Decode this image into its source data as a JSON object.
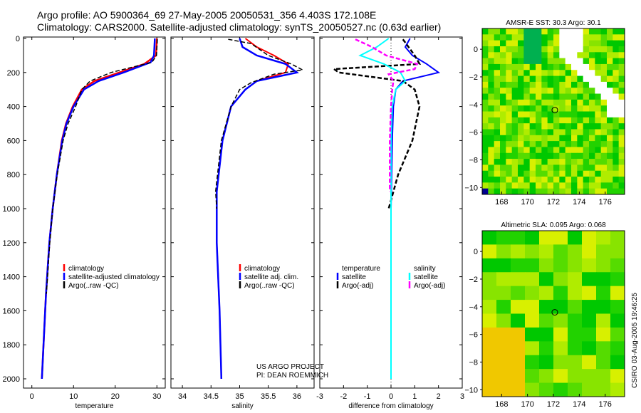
{
  "title_line1": "Argo profile: AO 5900364_69 27-May-2005 20050531_356 4.403S 172.108E",
  "title_line2": "Climatology: CARS2000. Satellite-adjusted climatology: synTS_20050527.nc (0.63d earlier)",
  "credit1": "US ARGO PROJECT",
  "credit2": "PI: DEAN ROEMMICH",
  "side_stamp": "CSIRO 03-Aug-2005 19:46:25",
  "colors": {
    "climatology": "#ff0000",
    "satellite": "#0000ff",
    "argo": "#000000",
    "sal_sat": "#00ffff",
    "sal_argo": "#ff00ff"
  },
  "chart_data": [
    {
      "type": "line",
      "name": "temperature",
      "xlabel": "temperature",
      "xlim": [
        -2,
        32
      ],
      "ylim": [
        0,
        2050
      ],
      "xticks": [
        0,
        10,
        20,
        30
      ],
      "yticks": [
        0,
        200,
        400,
        600,
        800,
        1000,
        1200,
        1400,
        1600,
        1800,
        2000
      ],
      "legend": [
        "climatology",
        "satellite-adjusted climatology",
        "Argo(..raw -QC)"
      ],
      "series": [
        {
          "name": "climatology",
          "depth": [
            0,
            100,
            150,
            200,
            250,
            300,
            400,
            500,
            600,
            800,
            1000,
            1200,
            1500,
            1800,
            2000
          ],
          "values": [
            30,
            29.8,
            27,
            21,
            15,
            12,
            9.8,
            8.2,
            7.2,
            6,
            5,
            4.2,
            3.4,
            2.8,
            2.4
          ]
        },
        {
          "name": "satellite-adjusted climatology",
          "depth": [
            0,
            100,
            140,
            200,
            250,
            300,
            400,
            500,
            600,
            800,
            1000,
            1200,
            1500,
            1800,
            2000
          ],
          "values": [
            29.5,
            29.3,
            28.5,
            22,
            16,
            12.5,
            10,
            8.3,
            7.3,
            6,
            5,
            4.2,
            3.4,
            2.8,
            2.4
          ]
        },
        {
          "name": "Argo(..raw -QC)",
          "depth": [
            5,
            100,
            140,
            200,
            250,
            300,
            400,
            500,
            600,
            800,
            1000,
            1200,
            1500
          ],
          "values": [
            30.1,
            29.9,
            28.8,
            19,
            14,
            12,
            10.5,
            8.7,
            7.5,
            6.1,
            5,
            4.3,
            3.5
          ]
        }
      ]
    },
    {
      "type": "line",
      "name": "salinity",
      "xlabel": "salinity",
      "xlim": [
        33.8,
        36.3
      ],
      "ylim": [
        0,
        2050
      ],
      "xticks": [
        34,
        34.5,
        35,
        35.5,
        36
      ],
      "xticklabels": [
        "34",
        "34.5",
        "35",
        "35.5",
        "36"
      ],
      "legend": [
        "climatology",
        "satellite adj. clim.",
        "Argo(..raw -QC)"
      ],
      "series": [
        {
          "name": "climatology",
          "depth": [
            0,
            50,
            100,
            150,
            200,
            250,
            300,
            400,
            600,
            900,
            1200,
            1600,
            2000
          ],
          "values": [
            35.1,
            35.3,
            35.6,
            35.85,
            35.8,
            35.3,
            35.1,
            34.85,
            34.7,
            34.6,
            34.6,
            34.65,
            34.68
          ]
        },
        {
          "name": "satellite adj. clim.",
          "depth": [
            0,
            50,
            100,
            150,
            200,
            250,
            300,
            400,
            600,
            900,
            1200,
            1600,
            2000
          ],
          "values": [
            35.0,
            35.05,
            35.3,
            35.8,
            36.0,
            35.3,
            35.1,
            34.85,
            34.7,
            34.6,
            34.6,
            34.65,
            34.68
          ]
        },
        {
          "name": "Argo(..raw -QC)",
          "depth": [
            5,
            30,
            100,
            150,
            185,
            210,
            260,
            300,
            400,
            600,
            900,
            1000
          ],
          "values": [
            34.8,
            35.2,
            35.5,
            35.9,
            36.1,
            35.6,
            35.2,
            35.0,
            34.85,
            34.68,
            34.58,
            34.6
          ]
        }
      ]
    },
    {
      "type": "line",
      "name": "difference",
      "xlabel": "difference from climatology",
      "xlim": [
        -3,
        3
      ],
      "ylim": [
        0,
        2050
      ],
      "xticks": [
        -3,
        -2,
        -1,
        0,
        1,
        2,
        3
      ],
      "legend_temp": [
        "temperature",
        "satellite",
        "Argo(-adj)"
      ],
      "legend_sal": [
        "salinity",
        "satellite",
        "Argo(-adj)"
      ],
      "series": [
        {
          "name": "temperature satellite",
          "depth": [
            0,
            50,
            100,
            150,
            200,
            250,
            300,
            400,
            600,
            1000,
            1500,
            2000
          ],
          "values": [
            0.8,
            0.6,
            0.9,
            1.5,
            2.0,
            0.5,
            0.2,
            0.1,
            0.05,
            0,
            0,
            0
          ]
        },
        {
          "name": "temperature Argo(-adj)",
          "depth": [
            5,
            100,
            150,
            180,
            200,
            250,
            300,
            400,
            600,
            800,
            1000
          ],
          "values": [
            0.5,
            1.0,
            1.2,
            -2.4,
            -2.2,
            0.5,
            1.0,
            1.2,
            0.9,
            0.3,
            -0.1
          ]
        },
        {
          "name": "salinity satellite",
          "depth": [
            0,
            50,
            100,
            150,
            200,
            250,
            300,
            400,
            600,
            1000,
            1500,
            2000
          ],
          "values": [
            -0.1,
            -0.6,
            -1.3,
            -0.3,
            0.4,
            0.6,
            0.2,
            0.05,
            0,
            0,
            0,
            0
          ]
        },
        {
          "name": "salinity Argo(-adj)",
          "depth": [
            5,
            50,
            100,
            150,
            180,
            210,
            250,
            300,
            400,
            600,
            900
          ],
          "values": [
            -1.5,
            -0.8,
            -0.2,
            1.1,
            1.0,
            -0.1,
            0.1,
            0.05,
            0,
            -0.05,
            -0.05
          ]
        }
      ]
    },
    {
      "type": "heatmap",
      "name": "sst-map",
      "title": "AMSR-E SST: 30.3 Argo: 30.1",
      "xticks": [
        168,
        170,
        172,
        174,
        176
      ],
      "yticks": [
        0,
        -2,
        -4,
        -6,
        -8,
        -10
      ],
      "xlim": [
        166.5,
        177.5
      ],
      "ylim": [
        -10.5,
        1.5
      ],
      "marker": [
        172.108,
        -4.403
      ]
    },
    {
      "type": "heatmap",
      "name": "sla-map",
      "title": "Altimetric SLA: 0.095 Argo: 0.068",
      "xticks": [
        168,
        170,
        172,
        174,
        176
      ],
      "yticks": [
        0,
        -2,
        -4,
        -6,
        -8,
        -10
      ],
      "xlim": [
        166.5,
        177.5
      ],
      "ylim": [
        -10.5,
        1.5
      ],
      "marker": [
        172.108,
        -4.403
      ]
    }
  ]
}
